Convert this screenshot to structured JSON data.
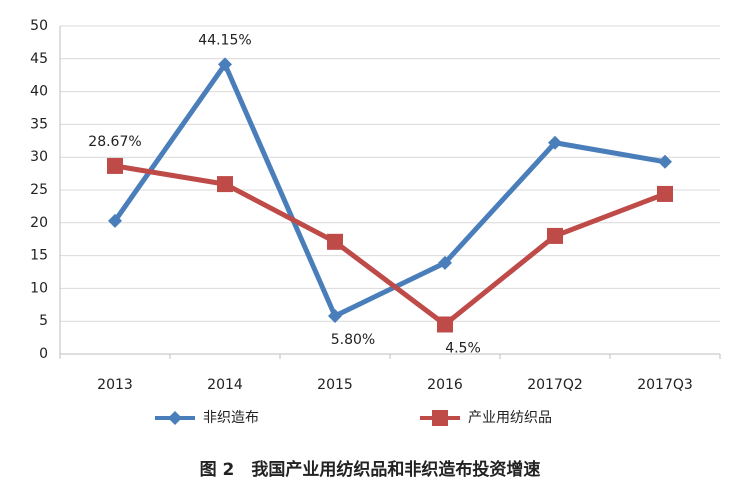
{
  "chart_data": {
    "type": "line",
    "caption": "图 2　我国产业用纺织品和非织造布投资增速",
    "categories": [
      "2013",
      "2014",
      "2015",
      "2016",
      "2017Q2",
      "2017Q3"
    ],
    "series": [
      {
        "name": "非织造布",
        "color": "#4a7ebb",
        "marker": "diamond",
        "values": [
          20.3,
          44.15,
          5.8,
          13.9,
          32.2,
          29.3
        ],
        "value_labels": [
          null,
          "44.15%",
          "5.80%",
          null,
          null,
          null
        ]
      },
      {
        "name": "产业用纺织品",
        "color": "#be4b48",
        "marker": "square",
        "values": [
          28.67,
          25.9,
          17.1,
          4.5,
          18.0,
          24.4
        ],
        "value_labels": [
          "28.67%",
          null,
          null,
          "4.5%",
          null,
          null
        ]
      }
    ],
    "ylim": [
      0,
      50
    ],
    "yticks": [
      0,
      5,
      10,
      15,
      20,
      25,
      30,
      35,
      40,
      45,
      50
    ],
    "grid": true,
    "legend": "bottom"
  }
}
